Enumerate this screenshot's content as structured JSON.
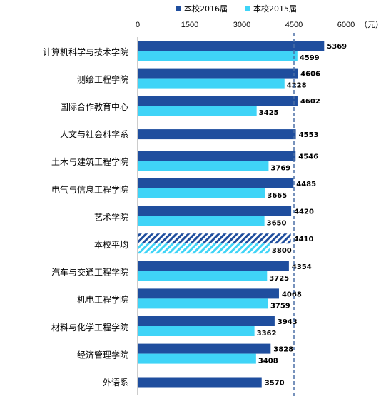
{
  "chart_data": {
    "type": "bar",
    "orientation": "horizontal",
    "unit": "（元）",
    "xlim": [
      0,
      6000
    ],
    "xticks": [
      "0",
      "1500",
      "3000",
      "4500",
      "6000"
    ],
    "reference_line": {
      "value": 4500,
      "style": "dashed"
    },
    "legend_position": "top",
    "categories": [
      "计算机科学与技术学院",
      "测绘工程学院",
      "国际合作教育中心",
      "人文与社会科学系",
      "土木与建筑工程学院",
      "电气与信息工程学院",
      "艺术学院",
      "本校平均",
      "汽车与交通工程学院",
      "机电工程学院",
      "材料与化学工程学院",
      "经济管理学院",
      "外语系"
    ],
    "highlight_category": "本校平均",
    "series": [
      {
        "name": "本校2016届",
        "color": "#1f4e9e",
        "values": [
          5369,
          4606,
          4602,
          4553,
          4546,
          4485,
          4420,
          4410,
          4354,
          4068,
          3943,
          3828,
          3570
        ]
      },
      {
        "name": "本校2015届",
        "color": "#3fd4f7",
        "values": [
          4599,
          4228,
          3425,
          null,
          3769,
          3665,
          3650,
          3800,
          3725,
          3759,
          3362,
          3408,
          null
        ]
      }
    ]
  }
}
